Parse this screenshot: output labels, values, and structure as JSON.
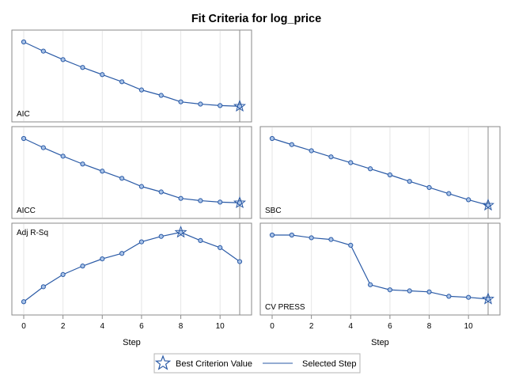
{
  "chart_data": {
    "type": "line",
    "title": "Fit Criteria for log_price",
    "xlabel": "Step",
    "x": [
      0,
      1,
      2,
      3,
      4,
      5,
      6,
      7,
      8,
      9,
      10,
      11
    ],
    "xticks": [
      0,
      2,
      4,
      6,
      8,
      10
    ],
    "xlim": [
      -0.5,
      11.5
    ],
    "selected_step": 11,
    "panels": [
      {
        "name": "AIC",
        "label": "AIC",
        "ylim": [
          0,
          100
        ],
        "values": [
          100,
          86.5,
          74,
          62.5,
          52,
          41.5,
          29.5,
          21.5,
          12,
          8.7,
          6.5,
          5.5
        ],
        "best_index": 11
      },
      {
        "name": "AICC",
        "label": "AICC",
        "ylim": [
          0,
          100
        ],
        "values": [
          100,
          86.5,
          74,
          62.5,
          52,
          41.5,
          29.5,
          21.5,
          12,
          8.7,
          6.5,
          5.5
        ],
        "best_index": 11
      },
      {
        "name": "SBC",
        "label": "SBC",
        "ylim": [
          0,
          100
        ],
        "values": [
          100,
          91,
          82,
          73,
          64.5,
          55.5,
          46.5,
          37,
          28,
          19,
          10,
          2
        ],
        "best_index": 11
      },
      {
        "name": "Adj R-Sq",
        "label": "Adj R-Sq",
        "ylim": [
          0,
          100
        ],
        "values": [
          2,
          24,
          42,
          54.5,
          65,
          73,
          90,
          98,
          104,
          92,
          81.5,
          61
        ],
        "best_index": 8
      },
      {
        "name": "CV PRESS",
        "label": "CV PRESS",
        "ylim": [
          0,
          100
        ],
        "values": [
          100,
          100,
          96,
          93.5,
          85,
          27,
          19.5,
          18,
          16.5,
          10,
          8.5,
          6
        ],
        "best_index": 11
      }
    ],
    "legend": {
      "position": "bottom",
      "items": [
        {
          "marker": "star",
          "label": "Best Criterion Value"
        },
        {
          "marker": "line",
          "label": "Selected Step"
        }
      ]
    }
  },
  "colors": {
    "series": "#2a5aa6",
    "marker_fill": "#a9c3e8",
    "frame": "#8a8a8a",
    "grid": "#e6e6e6",
    "selected_line": "#8a8a8a",
    "text": "#000000"
  }
}
